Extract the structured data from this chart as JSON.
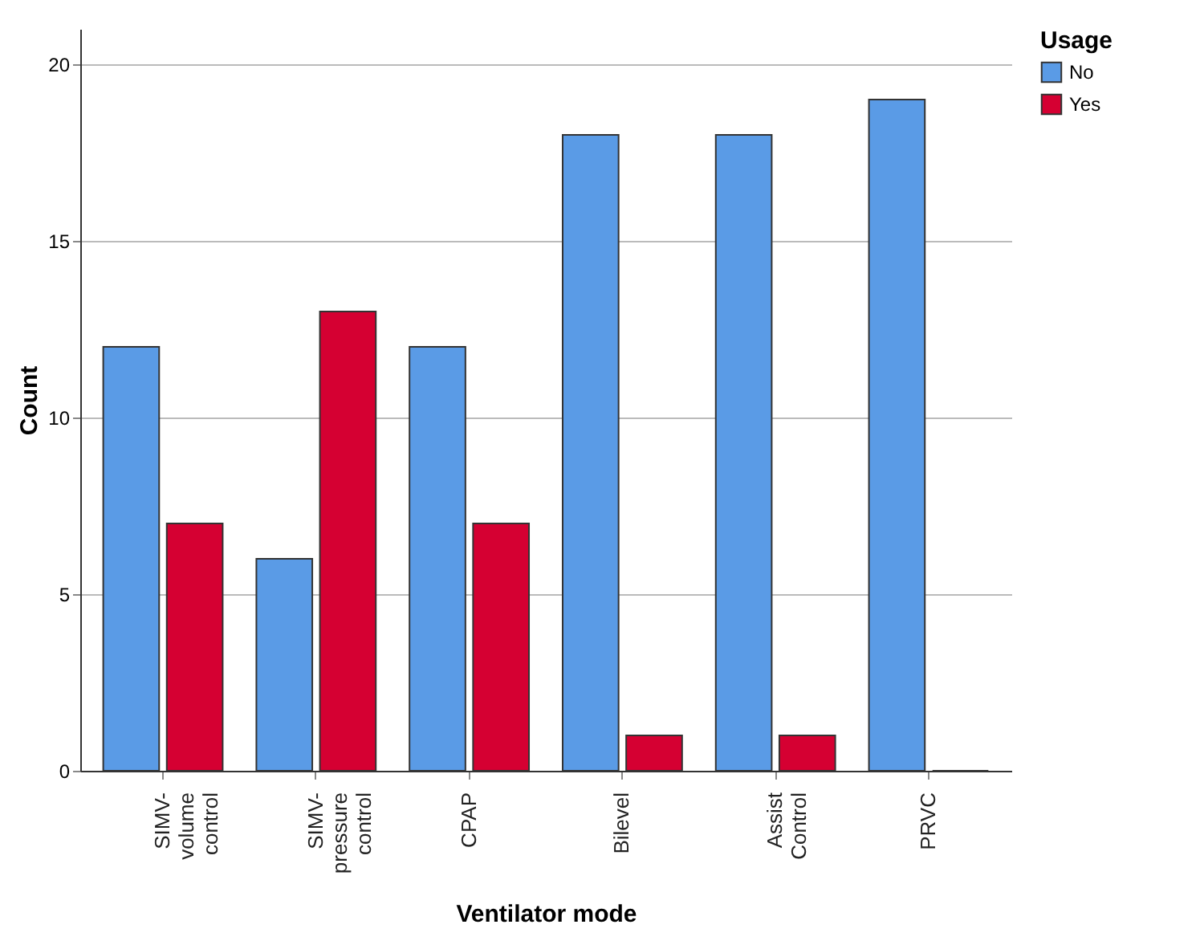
{
  "chart_data": {
    "type": "bar",
    "xlabel": "Ventilator mode",
    "ylabel": "Count",
    "legend_title": "Usage",
    "categories": [
      "SIMV-volume control",
      "SIMV-pressure control",
      "CPAP",
      "Bilevel",
      "Assist Control",
      "PRVC"
    ],
    "series": [
      {
        "name": "No",
        "color": "#5a9be6",
        "values": [
          12,
          6,
          12,
          18,
          18,
          19
        ]
      },
      {
        "name": "Yes",
        "color": "#d50032",
        "values": [
          7,
          13,
          7,
          1,
          1,
          0
        ]
      }
    ],
    "ylim": [
      0,
      21
    ],
    "yticks": [
      0,
      5,
      10,
      15,
      20
    ],
    "grid": "y",
    "legend": "top right"
  }
}
